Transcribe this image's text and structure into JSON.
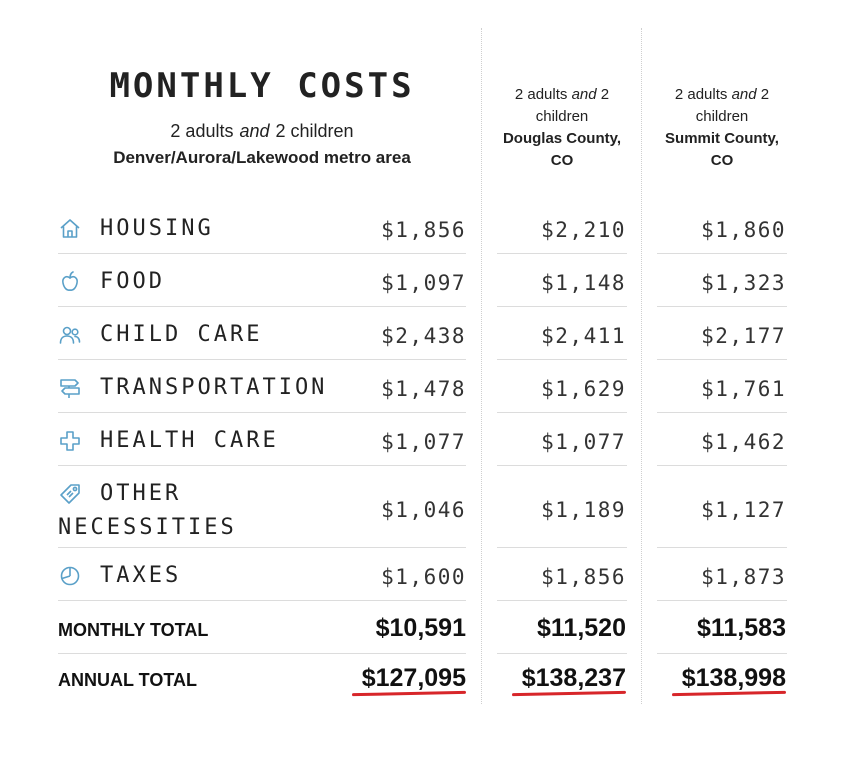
{
  "header": {
    "title": "MONTHLY COSTS",
    "subtitle_a": "2 adults",
    "subtitle_and": "and",
    "subtitle_b": "2 children",
    "region": "Denver/Aurora/Lakewood metro area"
  },
  "columns": [
    {
      "line1": "2 adults",
      "and": "and",
      "line1b": "2",
      "line2": "children",
      "region1": "Douglas County,",
      "region2": "CO"
    },
    {
      "line1": "2 adults",
      "and": "and",
      "line1b": "2",
      "line2": "children",
      "region1": "Summit County,",
      "region2": "CO"
    }
  ],
  "rows": [
    {
      "icon": "house-icon",
      "label": "HOUSING",
      "values": [
        "$1,856",
        "$2,210",
        "$1,860"
      ]
    },
    {
      "icon": "apple-icon",
      "label": "FOOD",
      "values": [
        "$1,097",
        "$1,148",
        "$1,323"
      ]
    },
    {
      "icon": "people-icon",
      "label": "CHILD CARE",
      "values": [
        "$2,438",
        "$2,411",
        "$2,177"
      ]
    },
    {
      "icon": "signpost-icon",
      "label": "TRANSPORTATION",
      "values": [
        "$1,478",
        "$1,629",
        "$1,761"
      ]
    },
    {
      "icon": "medical-cross-icon",
      "label": "HEALTH CARE",
      "values": [
        "$1,077",
        "$1,077",
        "$1,462"
      ]
    },
    {
      "icon": "tag-icon",
      "label_line1": "OTHER",
      "label_line2": "NECESSITIES",
      "values": [
        "$1,046",
        "$1,189",
        "$1,127"
      ]
    },
    {
      "icon": "pie-icon",
      "label": "TAXES",
      "values": [
        "$1,600",
        "$1,856",
        "$1,873"
      ]
    }
  ],
  "totals": {
    "monthly_label": "MONTHLY TOTAL",
    "monthly": [
      "$10,591",
      "$11,520",
      "$11,583"
    ],
    "annual_label": "ANNUAL TOTAL",
    "annual": [
      "$127,095",
      "$138,237",
      "$138,998"
    ]
  },
  "colors": {
    "icon": "#5aa0c8",
    "underline": "#d7262a",
    "rule": "#dcdcdc"
  }
}
